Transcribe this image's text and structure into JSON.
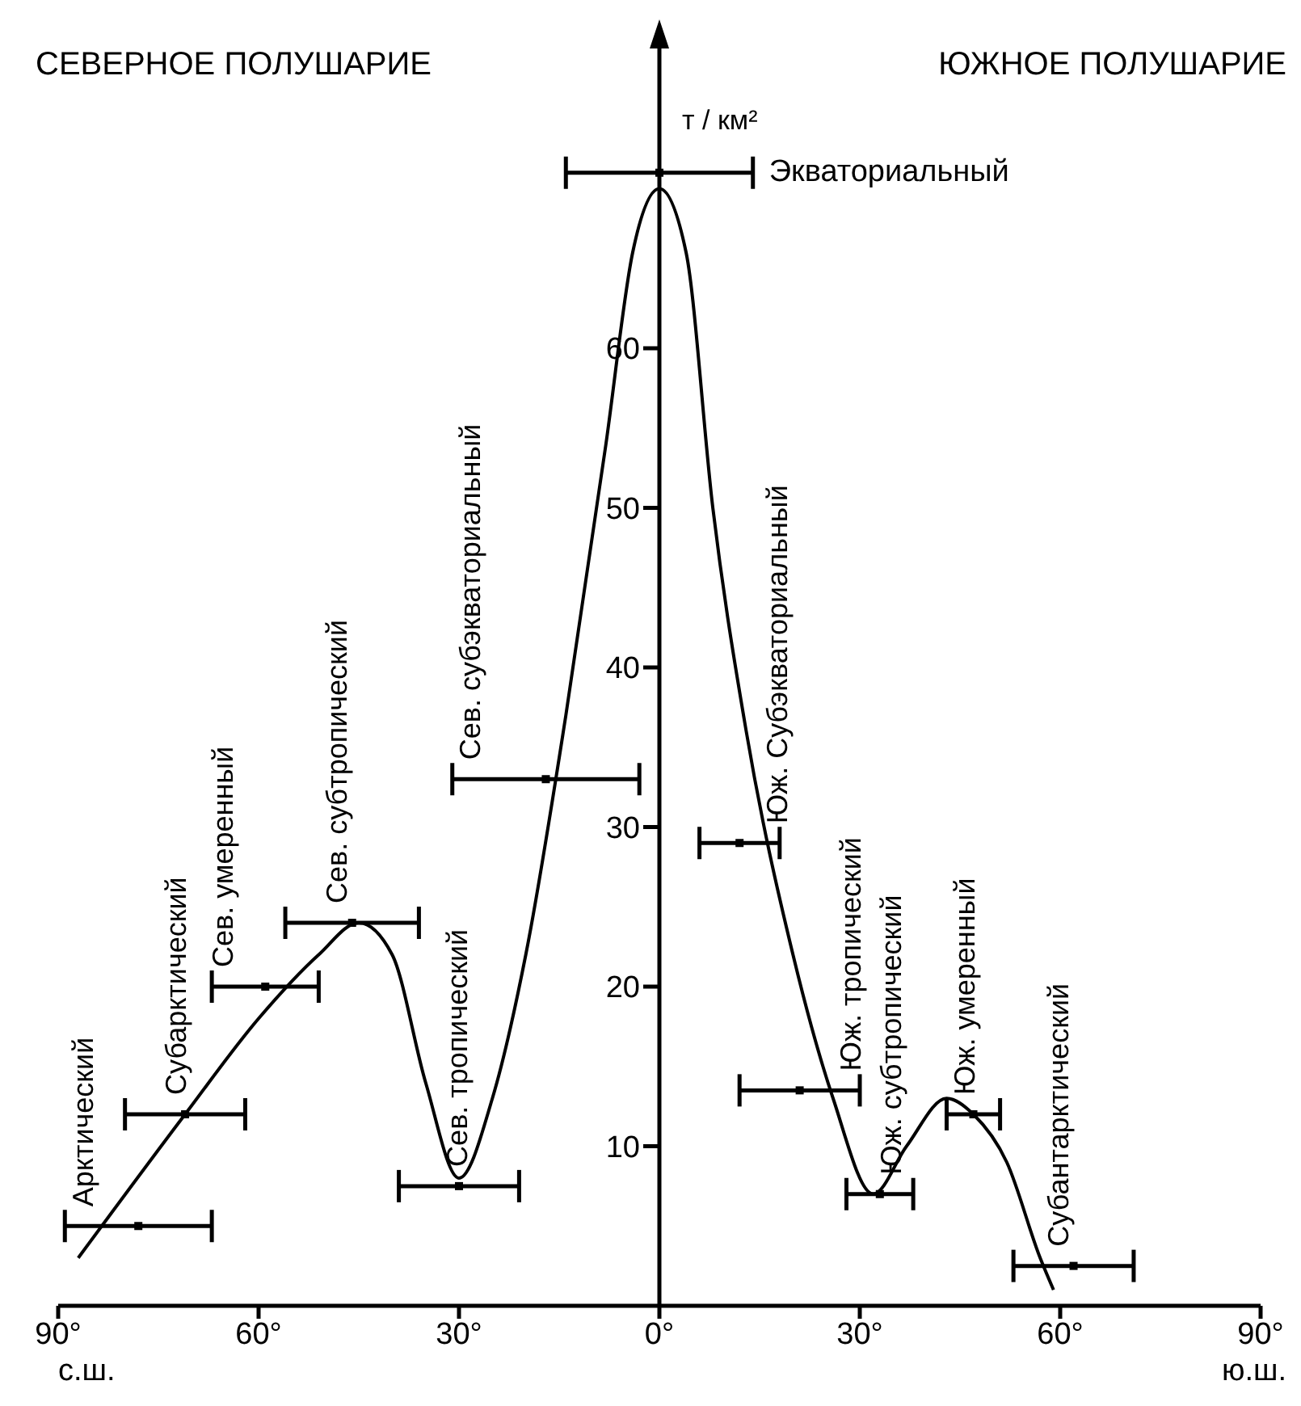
{
  "chart_data": {
    "type": "line",
    "ylabel": "т / км²",
    "xlim": [
      -90,
      90
    ],
    "xticks": [
      {
        "value": -90,
        "label": "90°"
      },
      {
        "value": -60,
        "label": "60°"
      },
      {
        "value": -30,
        "label": "30°"
      },
      {
        "value": 0,
        "label": "0°"
      },
      {
        "value": 30,
        "label": "30°"
      },
      {
        "value": 60,
        "label": "60°"
      },
      {
        "value": 90,
        "label": "90°"
      }
    ],
    "ylim": [
      0,
      80
    ],
    "yticks": [
      10,
      20,
      30,
      40,
      50,
      60
    ],
    "grid": false,
    "marker": "none",
    "line_style": "solid",
    "series": [
      {
        "color": "#000000",
        "x": [
          -87,
          -71,
          -60,
          -51,
          -45,
          -40,
          -35,
          -30,
          -25,
          -20,
          -14,
          -8,
          -4,
          0,
          4,
          8,
          13,
          20,
          26,
          32,
          37,
          43,
          47,
          52,
          57,
          59
        ],
        "values": [
          3,
          12,
          18,
          22,
          24,
          22,
          14,
          8,
          13,
          22,
          37,
          54,
          66,
          70,
          66,
          50,
          36,
          22,
          13,
          7,
          10,
          13,
          12,
          9,
          3,
          1
        ]
      },
      {
        "type": "scatter",
        "color": "#000000",
        "marker": "square",
        "x": [
          -78,
          -71,
          -59,
          -46,
          -30,
          -17,
          0,
          12,
          21,
          33,
          47,
          62
        ],
        "values": [
          5,
          12,
          20,
          24,
          7.5,
          33,
          71,
          29,
          13.5,
          7,
          12,
          2.5
        ],
        "xerrors": [
          11,
          9,
          8,
          10,
          9,
          14,
          14,
          6,
          9,
          5,
          4,
          9
        ]
      }
    ],
    "annotations": [
      "СЕВЕРНОЕ ПОЛУШАРИЕ",
      "ЮЖНОЕ ПОЛУШАРИЕ",
      "с.ш.",
      "ю.ш.",
      {
        "text": "Арктический",
        "x": -86,
        "y": 5
      },
      {
        "text": "Субарктический",
        "x": -72,
        "y": 12
      },
      {
        "text": "Сев. умеренный",
        "x": -65,
        "y": 20
      },
      {
        "text": "Сев. субтропический",
        "x": -48,
        "y": 24
      },
      {
        "text": "Сев. тропический",
        "x": -30,
        "y": 7.5
      },
      {
        "text": "Сев. субэкваториальный",
        "x": -28,
        "y": 33
      },
      {
        "text": "Экваториальный",
        "x": 14,
        "y": 71
      },
      {
        "text": "Юж. Субэкваториальный",
        "x": 18,
        "y": 29
      },
      {
        "text": "Юж. тропический",
        "x": 29,
        "y": 13.5
      },
      {
        "text": "Юж. субтропический",
        "x": 35,
        "y": 7
      },
      {
        "text": "Юж. умеренный",
        "x": 46,
        "y": 12
      },
      {
        "text": "Субантарктический",
        "x": 60,
        "y": 2.5
      }
    ]
  }
}
